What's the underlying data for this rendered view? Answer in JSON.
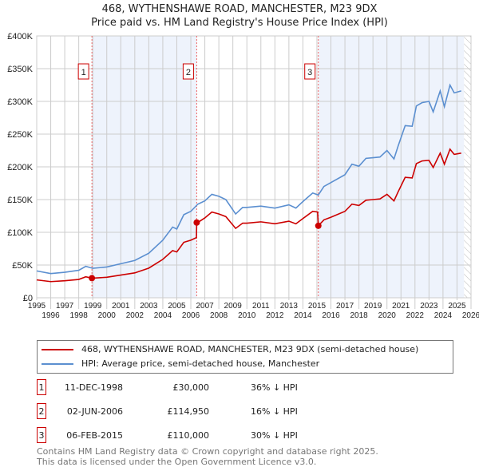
{
  "chart_data": {
    "type": "line",
    "title": "468, WYTHENSHAWE ROAD, MANCHESTER, M23 9DX",
    "subtitle": "Price paid vs. HM Land Registry's House Price Index (HPI)",
    "xlim": [
      1995,
      2026
    ],
    "ylim": [
      0,
      400000
    ],
    "x_ticks": [
      "1995",
      "1996",
      "1997",
      "1998",
      "1999",
      "2000",
      "2001",
      "2002",
      "2003",
      "2004",
      "2005",
      "2006",
      "2007",
      "2008",
      "2009",
      "2010",
      "2011",
      "2012",
      "2013",
      "2014",
      "2015",
      "2016",
      "2017",
      "2018",
      "2019",
      "2020",
      "2021",
      "2022",
      "2023",
      "2024",
      "2025",
      "2026"
    ],
    "y_ticks": [
      {
        "v": 0,
        "label": "£0"
      },
      {
        "v": 50000,
        "label": "£50K"
      },
      {
        "v": 100000,
        "label": "£100K"
      },
      {
        "v": 150000,
        "label": "£150K"
      },
      {
        "v": 200000,
        "label": "£200K"
      },
      {
        "v": 250000,
        "label": "£250K"
      },
      {
        "v": 300000,
        "label": "£300K"
      },
      {
        "v": 350000,
        "label": "£350K"
      },
      {
        "v": 400000,
        "label": "£400K"
      }
    ],
    "grid": true,
    "shaded_ranges": [
      [
        1998.94,
        2006.42
      ],
      [
        2015.1,
        2025.5
      ]
    ],
    "forecast_hatch_from": 2025.5,
    "series": [
      {
        "name": "468, WYTHENSHAWE ROAD, MANCHESTER, M23 9DX (semi-detached house)",
        "color": "#cc0000",
        "x": [
          1995,
          1996,
          1997,
          1998,
          1998.5,
          1998.94,
          1999,
          2000,
          2001,
          2002,
          2003,
          2004,
          2004.7,
          2005,
          2005.5,
          2006,
          2006.4,
          2006.42,
          2006.5,
          2007,
          2007.5,
          2008,
          2008.5,
          2009.2,
          2009.7,
          2010,
          2011,
          2012,
          2013,
          2013.5,
          2014,
          2014.7,
          2015.05,
          2015.1,
          2015.5,
          2016,
          2017,
          2017.5,
          2018,
          2018.5,
          2019,
          2019.5,
          2020,
          2020.5,
          2020.8,
          2021.3,
          2021.8,
          2022.1,
          2022.5,
          2023,
          2023.3,
          2023.8,
          2024.1,
          2024.5,
          2024.8,
          2025.3
        ],
        "y": [
          27300,
          24700,
          26000,
          28000,
          32000,
          30000,
          30000,
          31300,
          34700,
          38000,
          45300,
          58700,
          72000,
          70000,
          84700,
          88000,
          92000,
          114950,
          115000,
          122000,
          131000,
          128000,
          124000,
          106000,
          114000,
          114000,
          116000,
          113000,
          117000,
          113000,
          121000,
          132000,
          131000,
          110000,
          119000,
          123000,
          132000,
          143000,
          141000,
          149000,
          150000,
          151000,
          158000,
          148000,
          162000,
          184000,
          183000,
          205000,
          209000,
          210000,
          199000,
          221000,
          204000,
          227000,
          219000,
          221000
        ]
      },
      {
        "name": "HPI: Average price, semi-detached house, Manchester",
        "color": "#5b8fd0",
        "x": [
          1995,
          1996,
          1997,
          1998,
          1998.5,
          1999,
          2000,
          2001,
          2002,
          2003,
          2004,
          2004.7,
          2005,
          2005.5,
          2006,
          2006.5,
          2007,
          2007.5,
          2008,
          2008.5,
          2009.2,
          2009.7,
          2010,
          2011,
          2012,
          2013,
          2013.5,
          2014,
          2014.7,
          2015.1,
          2015.5,
          2016,
          2017,
          2017.5,
          2018,
          2018.5,
          2019,
          2019.5,
          2020,
          2020.5,
          2020.8,
          2021.3,
          2021.8,
          2022.1,
          2022.5,
          2023,
          2023.3,
          2023.8,
          2024.1,
          2024.5,
          2024.8,
          2025.3
        ],
        "y": [
          41000,
          37000,
          39000,
          42000,
          48000,
          45000,
          47000,
          52000,
          57000,
          68000,
          88000,
          108000,
          105000,
          127000,
          132000,
          143000,
          148000,
          158000,
          155000,
          150000,
          128000,
          138000,
          138000,
          140000,
          137000,
          142000,
          137000,
          147000,
          160000,
          157000,
          170000,
          176000,
          188000,
          204000,
          201000,
          213000,
          214000,
          215000,
          225000,
          212000,
          232000,
          263000,
          262000,
          293000,
          298000,
          300000,
          284000,
          316000,
          292000,
          325000,
          313000,
          316000
        ]
      }
    ],
    "sales": [
      {
        "n": "1",
        "x": 1998.94,
        "y": 30000,
        "date": "11-DEC-1998",
        "price": "£30,000",
        "hpi": "36% ↓ HPI"
      },
      {
        "n": "2",
        "x": 2006.42,
        "y": 114950,
        "date": "02-JUN-2006",
        "price": "£114,950",
        "hpi": "16% ↓ HPI"
      },
      {
        "n": "3",
        "x": 2015.1,
        "y": 110000,
        "date": "06-FEB-2015",
        "price": "£110,000",
        "hpi": "30% ↓ HPI"
      }
    ]
  },
  "legend": {
    "red": "468, WYTHENSHAWE ROAD, MANCHESTER, M23 9DX (semi-detached house)",
    "blue": "HPI: Average price, semi-detached house, Manchester"
  },
  "footer": {
    "line1": "Contains HM Land Registry data © Crown copyright and database right 2025.",
    "line2": "This data is licensed under the Open Government Licence v3.0."
  }
}
